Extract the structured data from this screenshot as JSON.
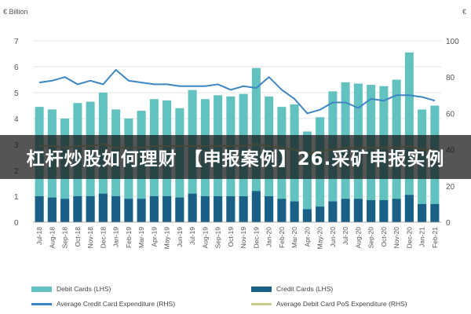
{
  "units": {
    "left": "€ Billion",
    "right": "€"
  },
  "banner": "杠杆炒股如何理财 【申报案例】26.采矿申报实例",
  "colors": {
    "debit_bar": "#62c2c0",
    "credit_bar": "#1a5f86",
    "credit_exp_line": "#3d86c4",
    "debit_pos_line": "#c8cd8c",
    "grid": "#dddddd",
    "axis_text": "#555555",
    "banner_bg": "#222222",
    "banner_text": "#ffffff"
  },
  "chart_data": {
    "type": "bar",
    "categories": [
      "Jul-18",
      "Aug-18",
      "Sep-18",
      "Oct-18",
      "Nov-18",
      "Dec-18",
      "Jan-19",
      "Feb-19",
      "Mar-19",
      "Apr-19",
      "May-19",
      "Jun-19",
      "Jul-19",
      "Aug-19",
      "Sep-19",
      "Oct-19",
      "Nov-19",
      "Dec-19",
      "Jan-20",
      "Feb-20",
      "Mar-20",
      "Apr-20",
      "May-20",
      "Jun-20",
      "Jul-20",
      "Aug-20",
      "Sep-20",
      "Oct-20",
      "Nov-20",
      "Dec-20",
      "Jan-21",
      "Feb-21"
    ],
    "ylim": [
      0,
      7
    ],
    "y2lim": [
      0,
      100
    ],
    "yticks": [
      0,
      1,
      2,
      3,
      4,
      5,
      6,
      7
    ],
    "y2ticks": [
      0,
      20,
      40,
      60,
      80,
      100
    ],
    "legend_position": "bottom",
    "grid": true,
    "series": [
      {
        "name": "Debit Cards (LHS)",
        "kind": "bar",
        "axis": "left",
        "values": [
          4.45,
          4.35,
          4.0,
          4.6,
          4.65,
          5.0,
          4.35,
          4.0,
          4.3,
          4.75,
          4.7,
          4.4,
          5.1,
          4.75,
          4.9,
          4.85,
          4.95,
          5.95,
          4.85,
          4.45,
          4.55,
          3.5,
          4.05,
          5.05,
          5.4,
          5.35,
          5.3,
          5.25,
          5.5,
          6.55,
          4.35,
          4.5
        ]
      },
      {
        "name": "Credit Cards (LHS)",
        "kind": "bar",
        "axis": "left",
        "values": [
          1.0,
          0.95,
          0.9,
          1.0,
          1.0,
          1.1,
          1.0,
          0.9,
          0.9,
          1.0,
          1.0,
          0.95,
          1.1,
          1.0,
          1.0,
          1.0,
          1.0,
          1.2,
          1.0,
          0.9,
          0.8,
          0.5,
          0.6,
          0.8,
          0.9,
          0.9,
          0.85,
          0.85,
          0.9,
          1.05,
          0.7,
          0.7
        ]
      },
      {
        "name": "Average Credit Card Expenditure (RHS)",
        "kind": "line",
        "axis": "right",
        "values": [
          77,
          78,
          80,
          76,
          78,
          76,
          84,
          78,
          77,
          76,
          76,
          75,
          75,
          75,
          76,
          73,
          75,
          74,
          80,
          73,
          68,
          60,
          62,
          66,
          66,
          63,
          68,
          67,
          70,
          70,
          69,
          67
        ]
      },
      {
        "name": "Average Debit Card PoS Expenditure (RHS)",
        "kind": "line",
        "axis": "right",
        "values": [
          42,
          42,
          41,
          42,
          42,
          43,
          41,
          41,
          41,
          42,
          42,
          42,
          42,
          42,
          42,
          42,
          42,
          43,
          42,
          41,
          40,
          38,
          39,
          40,
          41,
          41,
          41,
          41,
          41,
          42,
          40,
          40
        ]
      }
    ]
  }
}
